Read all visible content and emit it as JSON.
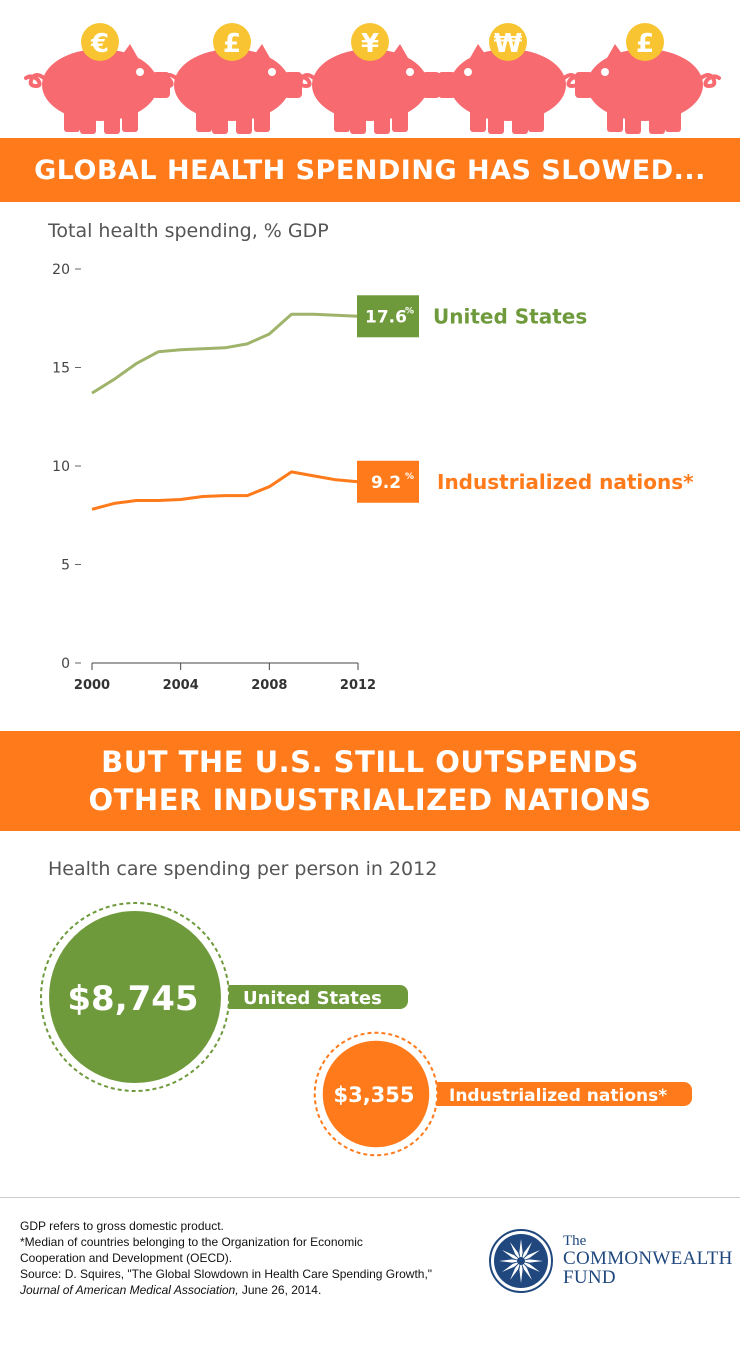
{
  "header": {
    "coins": [
      "€",
      "£",
      "¥",
      "₩",
      "£"
    ],
    "colors": {
      "pig": "#f76a6f",
      "coin": "#f8c432",
      "coin_text": "#ffffff",
      "accent": "#ff7a1a",
      "us": "#6f9a3c",
      "us_line": "#9fb46a"
    }
  },
  "banner1": {
    "title": "GLOBAL HEALTH SPENDING HAS SLOWED..."
  },
  "chart1": {
    "title": "Total health spending, % GDP",
    "us_callout": "17.6",
    "intl_callout": "9.2",
    "pct_mark": "%"
  },
  "banner2": {
    "line1": "BUT THE U.S. STILL OUTSPENDS",
    "line2": "OTHER INDUSTRIALIZED NATIONS"
  },
  "chart2": {
    "title": "Health care spending per person in 2012",
    "us_value": "$8,745",
    "us_label": "United States",
    "intl_value": "$3,355",
    "intl_label": "Industrialized nations*"
  },
  "chart_data": [
    {
      "type": "line",
      "title": "Total health spending, % GDP",
      "xlabel": "",
      "ylabel": "",
      "xlim": [
        2000,
        2012
      ],
      "ylim": [
        0,
        20
      ],
      "xticks": [
        2000,
        2004,
        2008,
        2012
      ],
      "yticks": [
        0,
        5,
        10,
        15,
        20
      ],
      "grid": false,
      "x": [
        2000,
        2001,
        2002,
        2003,
        2004,
        2005,
        2006,
        2007,
        2008,
        2009,
        2010,
        2011,
        2012
      ],
      "series": [
        {
          "name": "United States",
          "color": "#9fb46a",
          "values": [
            13.7,
            14.4,
            15.2,
            15.8,
            15.9,
            15.95,
            16.0,
            16.2,
            16.7,
            17.7,
            17.7,
            17.65,
            17.6
          ]
        },
        {
          "name": "Industrialized nations*",
          "color": "#ff7a1a",
          "values": [
            7.8,
            8.1,
            8.25,
            8.25,
            8.3,
            8.45,
            8.5,
            8.5,
            8.95,
            9.7,
            9.5,
            9.3,
            9.2
          ]
        }
      ]
    },
    {
      "type": "bar",
      "title": "Health care spending per person in 2012",
      "categories": [
        "United States",
        "Industrialized nations*"
      ],
      "values": [
        8745,
        3355
      ],
      "colors": [
        "#6f9a3c",
        "#ff7a1a"
      ]
    }
  ],
  "footer": {
    "line1": "GDP refers to gross domestic product.",
    "line2": "*Median of countries belonging to the Organization for Economic",
    "line3": "Cooperation and Development (OECD).",
    "line4": "Source: D. Squires, \"The Global Slowdown in Health Care Spending Growth,\"",
    "line5_italic": "Journal of American Medical Association,",
    "line5_rest": " June 26, 2014.",
    "logo_the": "The",
    "logo_commonwealth": "COMMONWEALTH",
    "logo_fund": "FUND",
    "logo_icon": "star-compass-logo"
  }
}
